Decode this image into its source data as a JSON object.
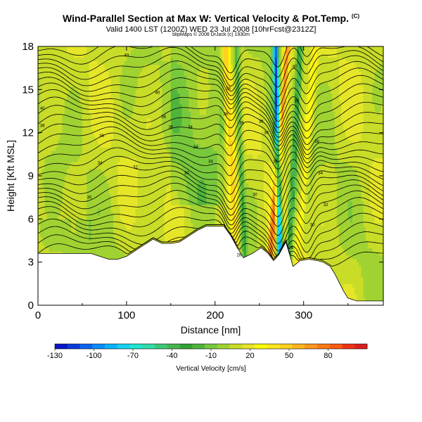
{
  "title": "Wind-Parallel Section at Max W: Vertical Velocity & Pot.Temp.",
  "title_mark": "(C)",
  "subtitle": "Valid 1400 LST (1200Z) WED 23 Jul 2008 [10hrFcst@2312Z]",
  "credit": "blipMaps © 2008 DrJack (c) 1930m",
  "chart_data": {
    "type": "heatmap",
    "title": "Wind-Parallel Section at Max W: Vertical Velocity & Pot.Temp.",
    "xlabel": "Distance [nm]",
    "ylabel": "Height [Kft MSL]",
    "xlim": [
      0,
      390
    ],
    "ylim": [
      0,
      18
    ],
    "xticks": [
      0,
      100,
      200,
      300
    ],
    "yticks": [
      0,
      3,
      6,
      9,
      12,
      15,
      18
    ],
    "colorbar": {
      "label": "Vertical Velocity [cm/s]",
      "ticks": [
        -130,
        -100,
        -70,
        -40,
        -10,
        20,
        50,
        80
      ],
      "range": [
        -130,
        110
      ],
      "bin_width": 10,
      "colors": [
        "#0a14c8",
        "#0a3cdc",
        "#0a64f0",
        "#0a8cff",
        "#0ab4ff",
        "#14d2f0",
        "#1ee6d2",
        "#32dcaa",
        "#3cc878",
        "#46b450",
        "#32a032",
        "#50b43c",
        "#78c83c",
        "#a0d232",
        "#c8dc28",
        "#e6e628",
        "#fafa0a",
        "#ffe61e",
        "#ffd21e",
        "#ffb41e",
        "#ff961e",
        "#ff7814",
        "#ff5a14",
        "#f03214",
        "#dc1e1e"
      ]
    },
    "terrain": [
      [
        0,
        3.6
      ],
      [
        20,
        3.6
      ],
      [
        45,
        3.6
      ],
      [
        60,
        3.6
      ],
      [
        70,
        3.4
      ],
      [
        80,
        3.2
      ],
      [
        90,
        3.2
      ],
      [
        100,
        3.4
      ],
      [
        110,
        3.8
      ],
      [
        120,
        4.2
      ],
      [
        130,
        4.6
      ],
      [
        140,
        4.3
      ],
      [
        150,
        4.3
      ],
      [
        160,
        4.4
      ],
      [
        170,
        4.8
      ],
      [
        180,
        5.2
      ],
      [
        190,
        5.5
      ],
      [
        200,
        5.5
      ],
      [
        210,
        5.5
      ],
      [
        218,
        4.8
      ],
      [
        225,
        4.0
      ],
      [
        232,
        3.3
      ],
      [
        242,
        3.6
      ],
      [
        252,
        4.0
      ],
      [
        260,
        3.6
      ],
      [
        266,
        3.1
      ],
      [
        272,
        3.5
      ],
      [
        280,
        4.4
      ],
      [
        288,
        2.7
      ],
      [
        296,
        3.1
      ],
      [
        306,
        3.2
      ],
      [
        316,
        3.1
      ],
      [
        322,
        3.0
      ],
      [
        330,
        2.7
      ],
      [
        335,
        2.2
      ],
      [
        340,
        1.6
      ],
      [
        345,
        1.0
      ],
      [
        350,
        0.5
      ],
      [
        360,
        0.3
      ],
      [
        375,
        0.3
      ],
      [
        390,
        0.3
      ]
    ],
    "updraft_bands": [
      {
        "x_top": 212,
        "x_bottom": 224,
        "w_max": 40
      },
      {
        "x_top": 282,
        "x_bottom": 262,
        "w_max": 70
      },
      {
        "x_top": 313,
        "x_bottom": 293,
        "w_max": 25
      }
    ],
    "downdraft_bands": [
      {
        "x_top": 224,
        "x_bottom": 234,
        "w_min": -30
      },
      {
        "x_top": 268,
        "x_bottom": 273,
        "w_min": -120
      },
      {
        "x_top": 296,
        "x_bottom": 283,
        "w_min": -50
      }
    ],
    "isentrope_labels": [
      {
        "x": 100,
        "y": 17.4,
        "text": "40"
      },
      {
        "x": 135,
        "y": 14.8,
        "text": "40"
      },
      {
        "x": 5,
        "y": 13.7,
        "text": "40"
      },
      {
        "x": 142,
        "y": 13.1,
        "text": "36"
      },
      {
        "x": 5,
        "y": 12.5,
        "text": "36"
      },
      {
        "x": 150,
        "y": 12.4,
        "text": "36"
      },
      {
        "x": 72,
        "y": 11.8,
        "text": "36"
      },
      {
        "x": 172,
        "y": 12.4,
        "text": "34"
      },
      {
        "x": 70,
        "y": 9.9,
        "text": "34"
      },
      {
        "x": 110,
        "y": 9.6,
        "text": "32"
      },
      {
        "x": 178,
        "y": 11.0,
        "text": "34"
      },
      {
        "x": 195,
        "y": 10.0,
        "text": "34"
      },
      {
        "x": 168,
        "y": 9.2,
        "text": "30"
      },
      {
        "x": 58,
        "y": 7.5,
        "text": "30"
      },
      {
        "x": 215,
        "y": 15.1,
        "text": "38"
      },
      {
        "x": 212,
        "y": 13.3,
        "text": "36"
      },
      {
        "x": 230,
        "y": 12.7,
        "text": "38"
      },
      {
        "x": 252,
        "y": 12.8,
        "text": "36"
      },
      {
        "x": 258,
        "y": 12.0,
        "text": "34"
      },
      {
        "x": 268,
        "y": 10.0,
        "text": "32"
      },
      {
        "x": 245,
        "y": 7.7,
        "text": "30"
      },
      {
        "x": 290,
        "y": 16.6,
        "text": "40"
      },
      {
        "x": 292,
        "y": 14.2,
        "text": "38"
      },
      {
        "x": 315,
        "y": 11.4,
        "text": "38"
      },
      {
        "x": 319,
        "y": 9.2,
        "text": "34"
      },
      {
        "x": 325,
        "y": 7.0,
        "text": "32"
      },
      {
        "x": 310,
        "y": 5.6,
        "text": "30"
      },
      {
        "x": 227,
        "y": 3.5,
        "text": "28"
      },
      {
        "x": 286,
        "y": 4.0,
        "text": "28"
      }
    ]
  }
}
